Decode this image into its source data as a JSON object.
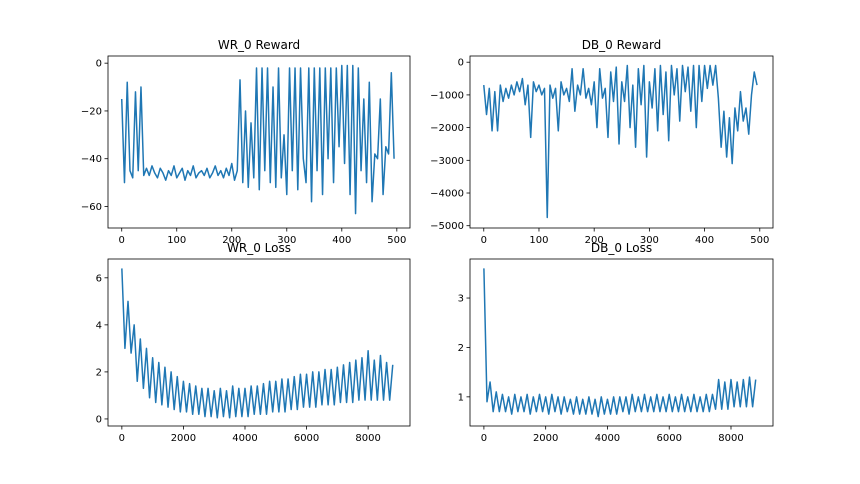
{
  "chart_data": [
    {
      "type": "line",
      "title": "WR_0 Reward",
      "x": [
        0,
        5,
        10,
        15,
        20,
        25,
        30,
        35,
        40,
        45,
        50,
        55,
        60,
        65,
        70,
        75,
        80,
        85,
        90,
        95,
        100,
        105,
        110,
        115,
        120,
        125,
        130,
        135,
        140,
        145,
        150,
        155,
        160,
        165,
        170,
        175,
        180,
        185,
        190,
        195,
        200,
        205,
        210,
        215,
        220,
        225,
        230,
        235,
        240,
        245,
        250,
        255,
        260,
        265,
        270,
        275,
        280,
        285,
        290,
        295,
        300,
        305,
        310,
        315,
        320,
        325,
        330,
        335,
        340,
        345,
        350,
        355,
        360,
        365,
        370,
        375,
        380,
        385,
        390,
        395,
        400,
        405,
        410,
        415,
        420,
        425,
        430,
        435,
        440,
        445,
        450,
        455,
        460,
        465,
        470,
        475,
        480,
        485,
        490,
        495
      ],
      "series": [
        {
          "color": "#1f77b4",
          "values": [
            -15,
            -50,
            -8,
            -45,
            -48,
            -12,
            -45,
            -10,
            -47,
            -44,
            -47,
            -43,
            -46,
            -48,
            -44,
            -46,
            -49,
            -45,
            -47,
            -43,
            -48,
            -46,
            -44,
            -49,
            -45,
            -47,
            -43,
            -48,
            -46,
            -45,
            -47,
            -44,
            -48,
            -46,
            -43,
            -47,
            -45,
            -48,
            -44,
            -47,
            -42,
            -49,
            -45,
            -7,
            -50,
            -20,
            -52,
            -25,
            -48,
            -2,
            -53,
            -2,
            -45,
            -2,
            -50,
            -10,
            -52,
            -2,
            -48,
            -30,
            -55,
            -2,
            -45,
            -2,
            -53,
            -2,
            -40,
            -50,
            -2,
            -58,
            -2,
            -45,
            -2,
            -55,
            -2,
            -40,
            -2,
            -50,
            -2,
            -35,
            -1,
            -42,
            -1,
            -55,
            -1,
            -63,
            -2,
            -45,
            -15,
            -50,
            -8,
            -58,
            -38,
            -40,
            -15,
            -55,
            -35,
            -38,
            -4,
            -40
          ]
        }
      ],
      "xlim": [
        -24.95,
        523.95
      ],
      "ylim": [
        -69,
        3
      ],
      "xticks": [
        0,
        100,
        200,
        300,
        400,
        500
      ],
      "yticks": [
        {
          "value": -60,
          "label": "−60"
        },
        {
          "value": -40,
          "label": "−40"
        },
        {
          "value": -20,
          "label": "−20"
        },
        0
      ]
    },
    {
      "type": "line",
      "title": "DB_0 Reward",
      "x": [
        0,
        5,
        10,
        15,
        20,
        25,
        30,
        35,
        40,
        45,
        50,
        55,
        60,
        65,
        70,
        75,
        80,
        85,
        90,
        95,
        100,
        105,
        110,
        115,
        120,
        125,
        130,
        135,
        140,
        145,
        150,
        155,
        160,
        165,
        170,
        175,
        180,
        185,
        190,
        195,
        200,
        205,
        210,
        215,
        220,
        225,
        230,
        235,
        240,
        245,
        250,
        255,
        260,
        265,
        270,
        275,
        280,
        285,
        290,
        295,
        300,
        305,
        310,
        315,
        320,
        325,
        330,
        335,
        340,
        345,
        350,
        355,
        360,
        365,
        370,
        375,
        380,
        385,
        390,
        395,
        400,
        405,
        410,
        415,
        420,
        425,
        430,
        435,
        440,
        445,
        450,
        455,
        460,
        465,
        470,
        475,
        480,
        485,
        490,
        495
      ],
      "series": [
        {
          "color": "#1f77b4",
          "values": [
            -700,
            -1600,
            -800,
            -2100,
            -900,
            -2100,
            -700,
            -1200,
            -800,
            -1100,
            -700,
            -1000,
            -600,
            -900,
            -500,
            -1300,
            -700,
            -2300,
            -600,
            -900,
            -700,
            -1000,
            -800,
            -4750,
            -700,
            -1100,
            -800,
            -2100,
            -600,
            -1000,
            -800,
            -1200,
            -200,
            -1500,
            -700,
            -1000,
            -200,
            -1100,
            -800,
            -1300,
            -600,
            -2000,
            -200,
            -1100,
            -800,
            -2300,
            -300,
            -1200,
            -150,
            -2500,
            -600,
            -1200,
            -100,
            -2000,
            -700,
            -2600,
            -200,
            -1300,
            -100,
            -2900,
            -600,
            -1400,
            -200,
            -2100,
            -100,
            -1600,
            -300,
            -2400,
            -100,
            -1000,
            -200,
            -1800,
            -100,
            -900,
            -150,
            -1500,
            -100,
            -2000,
            -100,
            -1200,
            -100,
            -800,
            -100,
            -700,
            -100,
            -1100,
            -2600,
            -1500,
            -2900,
            -1700,
            -3100,
            -1400,
            -2100,
            -900,
            -1800,
            -1400,
            -2200,
            -1000,
            -300,
            -700
          ]
        }
      ],
      "xlim": [
        -24.95,
        523.95
      ],
      "ylim": [
        -5070,
        190
      ],
      "xticks": [
        0,
        100,
        200,
        300,
        400,
        500
      ],
      "yticks": [
        {
          "value": -5000,
          "label": "−5000"
        },
        {
          "value": -4000,
          "label": "−4000"
        },
        {
          "value": -3000,
          "label": "−3000"
        },
        {
          "value": -2000,
          "label": "−2000"
        },
        {
          "value": -1000,
          "label": "−1000"
        },
        0
      ]
    },
    {
      "type": "line",
      "title": "WR_0 Loss",
      "x": [
        0,
        100,
        200,
        300,
        400,
        500,
        600,
        700,
        800,
        900,
        1000,
        1100,
        1200,
        1300,
        1400,
        1500,
        1600,
        1700,
        1800,
        1900,
        2000,
        2100,
        2200,
        2300,
        2400,
        2500,
        2600,
        2700,
        2800,
        2900,
        3000,
        3100,
        3200,
        3300,
        3400,
        3500,
        3600,
        3700,
        3800,
        3900,
        4000,
        4100,
        4200,
        4300,
        4400,
        4500,
        4600,
        4700,
        4800,
        4900,
        5000,
        5100,
        5200,
        5300,
        5400,
        5500,
        5600,
        5700,
        5800,
        5900,
        6000,
        6100,
        6200,
        6300,
        6400,
        6500,
        6600,
        6700,
        6800,
        6900,
        7000,
        7100,
        7200,
        7300,
        7400,
        7500,
        7600,
        7700,
        7800,
        7900,
        8000,
        8100,
        8200,
        8300,
        8400,
        8500,
        8600,
        8700,
        8800
      ],
      "series": [
        {
          "color": "#1f77b4",
          "values": [
            6.4,
            3.0,
            5.0,
            2.8,
            4.0,
            1.6,
            3.4,
            1.3,
            3.0,
            0.9,
            2.6,
            0.7,
            2.4,
            0.6,
            2.2,
            0.5,
            2.0,
            0.4,
            1.8,
            0.3,
            1.6,
            0.3,
            1.5,
            0.2,
            1.4,
            0.2,
            1.3,
            0.1,
            1.3,
            0.1,
            1.2,
            0.05,
            1.3,
            0.1,
            1.2,
            0.05,
            1.4,
            0.1,
            1.3,
            0.1,
            1.3,
            0.1,
            1.4,
            0.2,
            1.4,
            0.2,
            1.5,
            0.2,
            1.6,
            0.3,
            1.6,
            0.3,
            1.7,
            0.3,
            1.7,
            0.4,
            1.8,
            0.4,
            1.9,
            0.5,
            1.9,
            0.5,
            2.0,
            0.5,
            2.0,
            0.6,
            2.1,
            0.6,
            2.1,
            0.6,
            2.2,
            0.7,
            2.3,
            0.7,
            2.4,
            0.7,
            2.5,
            0.8,
            2.6,
            0.8,
            2.9,
            0.8,
            2.5,
            0.8,
            2.7,
            0.8,
            2.4,
            0.8,
            2.3
          ]
        }
      ],
      "xlim": [
        -450,
        9360
      ],
      "ylim": [
        -0.3,
        6.8
      ],
      "xticks": [
        0,
        2000,
        4000,
        6000,
        8000
      ],
      "yticks": [
        0,
        2,
        4,
        6
      ]
    },
    {
      "type": "line",
      "title": "DB_0 Loss",
      "x": [
        0,
        100,
        200,
        300,
        400,
        500,
        600,
        700,
        800,
        900,
        1000,
        1100,
        1200,
        1300,
        1400,
        1500,
        1600,
        1700,
        1800,
        1900,
        2000,
        2100,
        2200,
        2300,
        2400,
        2500,
        2600,
        2700,
        2800,
        2900,
        3000,
        3100,
        3200,
        3300,
        3400,
        3500,
        3600,
        3700,
        3800,
        3900,
        4000,
        4100,
        4200,
        4300,
        4400,
        4500,
        4600,
        4700,
        4800,
        4900,
        5000,
        5100,
        5200,
        5300,
        5400,
        5500,
        5600,
        5700,
        5800,
        5900,
        6000,
        6100,
        6200,
        6300,
        6400,
        6500,
        6600,
        6700,
        6800,
        6900,
        7000,
        7100,
        7200,
        7300,
        7400,
        7500,
        7600,
        7700,
        7800,
        7900,
        8000,
        8100,
        8200,
        8300,
        8400,
        8500,
        8600,
        8700,
        8800
      ],
      "series": [
        {
          "color": "#1f77b4",
          "values": [
            3.6,
            0.9,
            1.3,
            0.7,
            1.1,
            0.7,
            1.05,
            0.7,
            1.0,
            0.65,
            1.05,
            0.7,
            1.0,
            0.7,
            1.05,
            0.65,
            1.0,
            0.7,
            1.05,
            0.7,
            1.0,
            0.65,
            1.05,
            0.7,
            1.0,
            0.65,
            1.0,
            0.7,
            0.95,
            0.65,
            1.0,
            0.65,
            0.95,
            0.65,
            1.0,
            0.65,
            0.95,
            0.6,
            1.0,
            0.65,
            0.95,
            0.65,
            1.0,
            0.65,
            1.0,
            0.7,
            1.0,
            0.65,
            1.05,
            0.7,
            1.0,
            0.7,
            1.05,
            0.7,
            1.0,
            0.7,
            1.05,
            0.7,
            1.0,
            0.7,
            1.05,
            0.7,
            1.0,
            0.7,
            1.05,
            0.7,
            1.0,
            0.7,
            1.05,
            0.7,
            1.0,
            0.7,
            1.05,
            0.7,
            1.05,
            0.75,
            1.35,
            0.75,
            1.3,
            0.75,
            1.35,
            0.8,
            1.3,
            0.8,
            1.35,
            0.8,
            1.4,
            0.8,
            1.35
          ]
        }
      ],
      "xlim": [
        -450,
        9360
      ],
      "ylim": [
        0.41,
        3.79
      ],
      "xticks": [
        0,
        2000,
        4000,
        6000,
        8000
      ],
      "yticks": [
        1,
        2,
        3
      ]
    }
  ]
}
